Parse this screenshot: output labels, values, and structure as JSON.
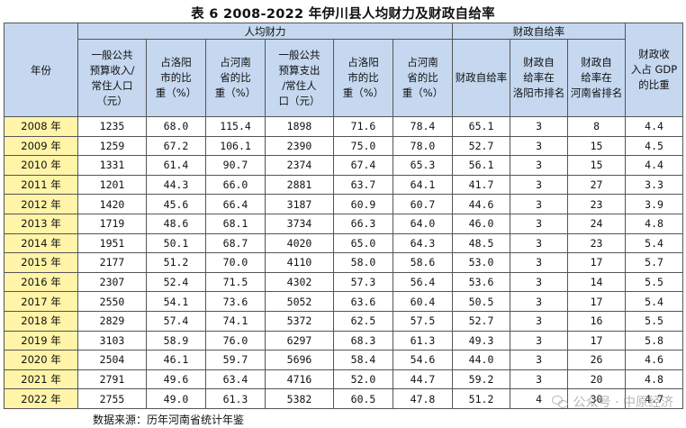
{
  "title": "表 6 2008-2022 年伊川县人均财力及财政自给率",
  "header": {
    "year": "年份",
    "group_per_capita": "人均财力",
    "group_self_sufficiency": "财政自给率",
    "columns": [
      [
        "一般公共",
        "预算收入/",
        "常住人口",
        "（元）"
      ],
      [
        "占洛阳",
        "市的比",
        "重（%）"
      ],
      [
        "占河南",
        "省的比",
        "重（%）"
      ],
      [
        "一般公共",
        "预算支出",
        "/常住人",
        "口（元）"
      ],
      [
        "占洛阳",
        "市的比",
        "重（%）"
      ],
      [
        "占河南",
        "省的比",
        "重（%）"
      ],
      [
        "财政自",
        "给率"
      ],
      [
        "财政自",
        "给率在",
        "洛阳市",
        "排名"
      ],
      [
        "财政自",
        "给率在",
        "河南省",
        "排名"
      ],
      [
        "财政收",
        "入占 GDP",
        "的比重"
      ]
    ]
  },
  "rows": [
    {
      "year": "2008 年",
      "values": [
        "1235",
        "68.0",
        "115.4",
        "1898",
        "71.6",
        "78.4",
        "65.1",
        "3",
        "8",
        "4.4"
      ]
    },
    {
      "year": "2009 年",
      "values": [
        "1259",
        "67.2",
        "106.1",
        "2390",
        "75.0",
        "78.0",
        "52.7",
        "3",
        "15",
        "4.5"
      ]
    },
    {
      "year": "2010 年",
      "values": [
        "1331",
        "61.4",
        "90.7",
        "2374",
        "67.4",
        "65.3",
        "56.1",
        "3",
        "15",
        "4.4"
      ]
    },
    {
      "year": "2011 年",
      "values": [
        "1201",
        "44.3",
        "66.0",
        "2881",
        "63.7",
        "64.1",
        "41.7",
        "3",
        "27",
        "3.3"
      ]
    },
    {
      "year": "2012 年",
      "values": [
        "1420",
        "45.6",
        "66.4",
        "3187",
        "60.9",
        "60.7",
        "44.6",
        "3",
        "23",
        "3.9"
      ]
    },
    {
      "year": "2013 年",
      "values": [
        "1719",
        "48.6",
        "68.1",
        "3734",
        "66.3",
        "64.0",
        "46.0",
        "3",
        "24",
        "4.8"
      ]
    },
    {
      "year": "2014 年",
      "values": [
        "1951",
        "50.1",
        "68.7",
        "4020",
        "65.0",
        "64.3",
        "48.5",
        "3",
        "23",
        "5.4"
      ]
    },
    {
      "year": "2015 年",
      "values": [
        "2177",
        "51.2",
        "70.0",
        "4110",
        "58.0",
        "58.6",
        "53.0",
        "3",
        "17",
        "5.7"
      ]
    },
    {
      "year": "2016 年",
      "values": [
        "2307",
        "52.4",
        "71.5",
        "4302",
        "57.3",
        "56.4",
        "53.6",
        "3",
        "14",
        "5.5"
      ]
    },
    {
      "year": "2017 年",
      "values": [
        "2550",
        "54.1",
        "73.6",
        "5052",
        "63.6",
        "60.4",
        "50.5",
        "3",
        "17",
        "5.4"
      ]
    },
    {
      "year": "2018 年",
      "values": [
        "2829",
        "57.4",
        "74.1",
        "5372",
        "62.5",
        "57.5",
        "52.7",
        "3",
        "16",
        "5.5"
      ]
    },
    {
      "year": "2019 年",
      "values": [
        "3103",
        "58.9",
        "76.0",
        "6297",
        "68.3",
        "61.3",
        "49.3",
        "3",
        "17",
        "5.8"
      ]
    },
    {
      "year": "2020 年",
      "values": [
        "2504",
        "46.1",
        "59.7",
        "5696",
        "58.4",
        "54.6",
        "44.0",
        "3",
        "26",
        "4.6"
      ]
    },
    {
      "year": "2021 年",
      "values": [
        "2791",
        "49.6",
        "63.4",
        "4716",
        "52.0",
        "44.7",
        "59.2",
        "3",
        "20",
        "4.8"
      ]
    },
    {
      "year": "2022 年",
      "values": [
        "2755",
        "49.0",
        "61.3",
        "5382",
        "60.5",
        "47.8",
        "51.2",
        "4",
        "30",
        "4.7"
      ]
    }
  ],
  "source_note": "数据来源：历年河南省统计年鉴",
  "watermark": "公众号 · 中原经济",
  "watermark_icon": "wechat-icon"
}
